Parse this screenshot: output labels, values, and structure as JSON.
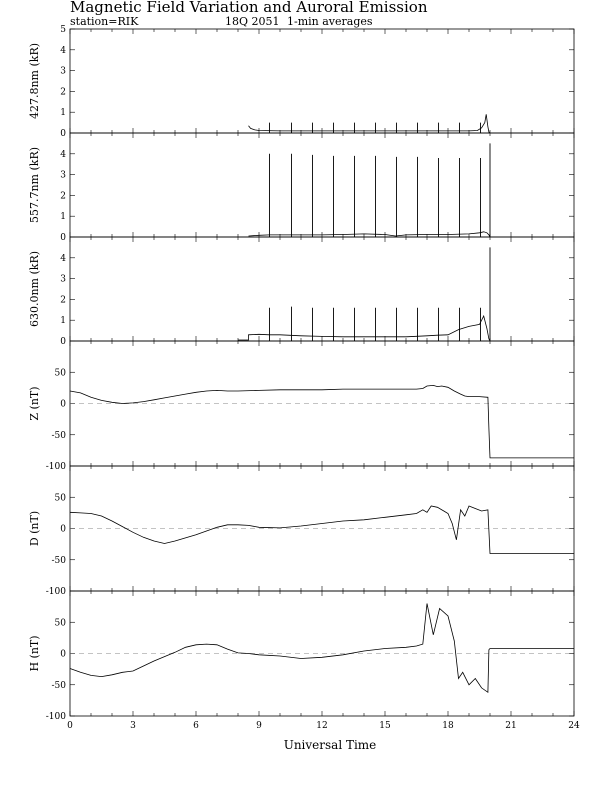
{
  "header": {
    "title": "Magnetic Field Variation and Auroral Emission",
    "station": "station=RIK",
    "date_code": "18Q 2051",
    "averaging": "1-min averages"
  },
  "chart_data": [
    {
      "type": "line",
      "ylabel": "427.8nm (kR)",
      "xlim": [
        0,
        24
      ],
      "ylim": [
        0,
        5
      ],
      "yticks": [
        0,
        1,
        2,
        3,
        4,
        5
      ],
      "xlabel": "",
      "zero_line": false,
      "series": [
        {
          "x": [
            8.5,
            8.6,
            8.8,
            9.0,
            10,
            11,
            12,
            13,
            14,
            15,
            16,
            17,
            18,
            19,
            19.4,
            19.6,
            19.75,
            19.82,
            19.9,
            19.95,
            20.0
          ],
          "y": [
            0.35,
            0.22,
            0.15,
            0.12,
            0.1,
            0.1,
            0.1,
            0.1,
            0.1,
            0.1,
            0.1,
            0.1,
            0.1,
            0.1,
            0.12,
            0.25,
            0.5,
            0.9,
            0.3,
            0.05,
            0.0
          ]
        }
      ],
      "spikes": {
        "x": [
          9.5,
          10.55,
          11.55,
          12.55,
          13.55,
          14.55,
          15.55,
          16.55,
          17.55,
          18.55,
          19.55
        ],
        "y": [
          0.5,
          0.5,
          0.5,
          0.5,
          0.5,
          0.5,
          0.5,
          0.5,
          0.5,
          0.5,
          0.5
        ]
      }
    },
    {
      "type": "line",
      "ylabel": "557.7nm (kR)",
      "xlim": [
        0,
        24
      ],
      "ylim": [
        0,
        5
      ],
      "yticks": [
        0,
        1,
        2,
        3,
        4
      ],
      "xlabel": "",
      "zero_line": false,
      "series": [
        {
          "x": [
            8.5,
            9.0,
            9.5,
            10,
            11,
            12,
            13,
            14,
            15,
            15.5,
            16,
            17,
            18,
            19,
            19.5,
            19.7,
            19.85,
            19.95,
            20.0
          ],
          "y": [
            0.05,
            0.08,
            0.1,
            0.1,
            0.1,
            0.1,
            0.12,
            0.15,
            0.12,
            0.05,
            0.1,
            0.12,
            0.12,
            0.15,
            0.2,
            0.25,
            0.2,
            0.1,
            0.0
          ]
        }
      ],
      "spikes": {
        "x": [
          9.5,
          10.55,
          11.55,
          12.55,
          13.55,
          14.55,
          15.55,
          16.55,
          17.55,
          18.55,
          19.55,
          20.0
        ],
        "y": [
          4.0,
          4.0,
          3.95,
          3.9,
          3.9,
          3.9,
          3.85,
          3.85,
          3.8,
          3.8,
          3.8,
          4.5
        ]
      }
    },
    {
      "type": "line",
      "ylabel": "630.0nm (kR)",
      "xlim": [
        0,
        24
      ],
      "ylim": [
        0,
        5
      ],
      "yticks": [
        0,
        1,
        2,
        3,
        4
      ],
      "xlabel": "",
      "zero_line": false,
      "series": [
        {
          "x": [
            8.0,
            8.5,
            8.5,
            9.0,
            9.5,
            10,
            11,
            12,
            13,
            14,
            15,
            16,
            17,
            17.5,
            18,
            18.5,
            19,
            19.5,
            19.7,
            19.85,
            19.95,
            20.0
          ],
          "y": [
            0.05,
            0.05,
            0.3,
            0.32,
            0.3,
            0.3,
            0.25,
            0.22,
            0.2,
            0.2,
            0.2,
            0.2,
            0.25,
            0.28,
            0.3,
            0.55,
            0.7,
            0.8,
            1.2,
            0.6,
            0.1,
            0.0
          ]
        }
      ],
      "spikes": {
        "x": [
          9.5,
          10.55,
          11.55,
          12.55,
          13.55,
          14.55,
          15.55,
          16.55,
          17.55,
          18.55,
          19.55,
          20.0
        ],
        "y": [
          1.6,
          1.65,
          1.6,
          1.6,
          1.6,
          1.6,
          1.6,
          1.6,
          1.6,
          1.6,
          1.6,
          4.5
        ]
      }
    },
    {
      "type": "line",
      "ylabel": "Z (nT)",
      "xlim": [
        0,
        24
      ],
      "ylim": [
        -100,
        100
      ],
      "yticks": [
        -100,
        -50,
        0,
        50
      ],
      "xlabel": "",
      "zero_line": true,
      "series": [
        {
          "x": [
            0,
            0.5,
            1,
            1.5,
            2,
            2.5,
            3,
            3.5,
            4,
            4.5,
            5,
            5.5,
            6,
            6.5,
            7,
            7.5,
            8,
            9,
            10,
            11,
            12,
            13,
            14,
            15,
            16,
            16.5,
            16.8,
            17,
            17.3,
            17.5,
            17.7,
            18,
            18.3,
            18.6,
            18.8,
            19,
            19.5,
            19.9,
            19.95,
            20,
            21,
            22,
            23,
            24
          ],
          "y": [
            20,
            17,
            10,
            5,
            2,
            0,
            1,
            3,
            6,
            9,
            12,
            15,
            18,
            20,
            21,
            20,
            20,
            21,
            22,
            22,
            22,
            23,
            23,
            23,
            23,
            23,
            24,
            28,
            29,
            27,
            28,
            26,
            20,
            15,
            12,
            11,
            11,
            10,
            -40,
            -87,
            -87,
            -87,
            -87,
            -87
          ]
        }
      ]
    },
    {
      "type": "line",
      "ylabel": "D (nT)",
      "xlim": [
        0,
        24
      ],
      "ylim": [
        -100,
        100
      ],
      "yticks": [
        -100,
        -50,
        0,
        50
      ],
      "xlabel": "",
      "zero_line": true,
      "series": [
        {
          "x": [
            0,
            0.5,
            1,
            1.5,
            2,
            2.5,
            3,
            3.5,
            4,
            4.5,
            5,
            5.5,
            6,
            6.5,
            7,
            7.5,
            8,
            8.5,
            9,
            10,
            11,
            12,
            13,
            14,
            15,
            16,
            16.5,
            16.8,
            17,
            17.2,
            17.5,
            17.8,
            18,
            18.2,
            18.4,
            18.6,
            18.8,
            19,
            19.3,
            19.6,
            19.9,
            20,
            21,
            22,
            23,
            24
          ],
          "y": [
            26,
            25,
            24,
            20,
            12,
            3,
            -6,
            -14,
            -20,
            -24,
            -20,
            -15,
            -10,
            -4,
            2,
            6,
            6,
            5,
            2,
            1,
            4,
            8,
            12,
            14,
            18,
            22,
            24,
            30,
            26,
            36,
            34,
            28,
            24,
            8,
            -18,
            30,
            20,
            36,
            32,
            28,
            30,
            -40,
            -40,
            -40,
            -40,
            -40
          ]
        }
      ]
    },
    {
      "type": "line",
      "ylabel": "H (nT)",
      "xlim": [
        0,
        24
      ],
      "ylim": [
        -100,
        100
      ],
      "yticks": [
        -100,
        -50,
        0,
        50
      ],
      "xlabel": "Universal Time",
      "xticks": [
        0,
        3,
        6,
        9,
        12,
        15,
        18,
        21,
        24
      ],
      "zero_line": true,
      "series": [
        {
          "x": [
            0,
            0.5,
            1,
            1.5,
            2,
            2.5,
            3,
            3.5,
            4,
            4.5,
            5,
            5.5,
            6,
            6.5,
            7,
            7.5,
            8,
            8.5,
            9,
            10,
            11,
            12,
            13,
            14,
            15,
            16,
            16.5,
            16.8,
            17.0,
            17.3,
            17.6,
            18.0,
            18.3,
            18.5,
            18.7,
            19.0,
            19.3,
            19.6,
            19.9,
            19.95,
            20,
            21,
            22,
            23,
            24
          ],
          "y": [
            -24,
            -30,
            -35,
            -37,
            -34,
            -30,
            -28,
            -20,
            -12,
            -5,
            2,
            10,
            14,
            15,
            14,
            7,
            1,
            0,
            -2,
            -4,
            -8,
            -6,
            -2,
            4,
            8,
            10,
            12,
            15,
            80,
            30,
            72,
            60,
            20,
            -40,
            -30,
            -50,
            -40,
            -55,
            -62,
            6,
            8,
            8,
            8,
            8,
            8
          ]
        }
      ]
    }
  ]
}
